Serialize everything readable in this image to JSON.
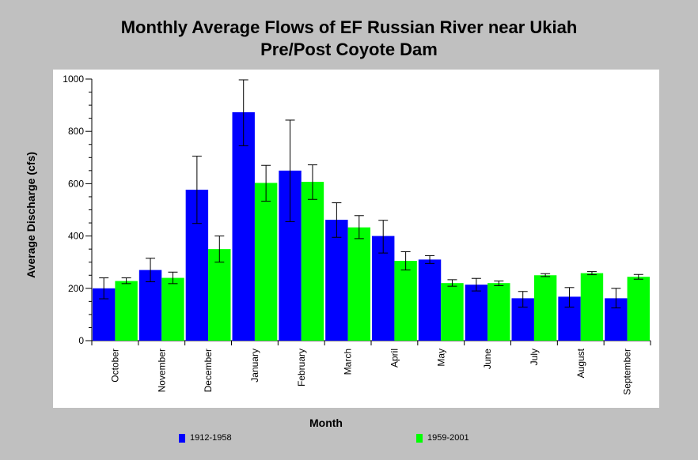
{
  "chart_data": {
    "type": "bar",
    "title": "Monthly Average Flows of EF Russian River near Ukiah",
    "subtitle": "Pre/Post Coyote Dam",
    "xlabel": "Month",
    "ylabel": "Average Discharge (cfs)",
    "ylim": [
      0,
      1000
    ],
    "yticks": [
      "0",
      "200",
      "400",
      "600",
      "800",
      "1000"
    ],
    "categories": [
      "October",
      "November",
      "December",
      "January",
      "February",
      "March",
      "April",
      "May",
      "June",
      "July",
      "August",
      "September"
    ],
    "series": [
      {
        "name": "1912-1958",
        "color": "#0000ff",
        "values": [
          200,
          270,
          577,
          873,
          650,
          462,
          400,
          310,
          214,
          162,
          168,
          162
        ],
        "error_low": [
          160,
          225,
          448,
          745,
          455,
          395,
          335,
          295,
          190,
          128,
          128,
          125
        ],
        "error_high": [
          240,
          315,
          705,
          997,
          843,
          527,
          460,
          325,
          238,
          188,
          203,
          200
        ]
      },
      {
        "name": "1959-2001",
        "color": "#00ff00",
        "values": [
          228,
          240,
          350,
          603,
          607,
          433,
          305,
          220,
          220,
          250,
          258,
          244
        ],
        "error_low": [
          218,
          218,
          300,
          533,
          540,
          390,
          270,
          208,
          210,
          245,
          252,
          235
        ],
        "error_high": [
          240,
          262,
          400,
          670,
          672,
          478,
          340,
          233,
          228,
          256,
          264,
          253
        ]
      }
    ],
    "grid": false,
    "legend_position": "bottom"
  }
}
